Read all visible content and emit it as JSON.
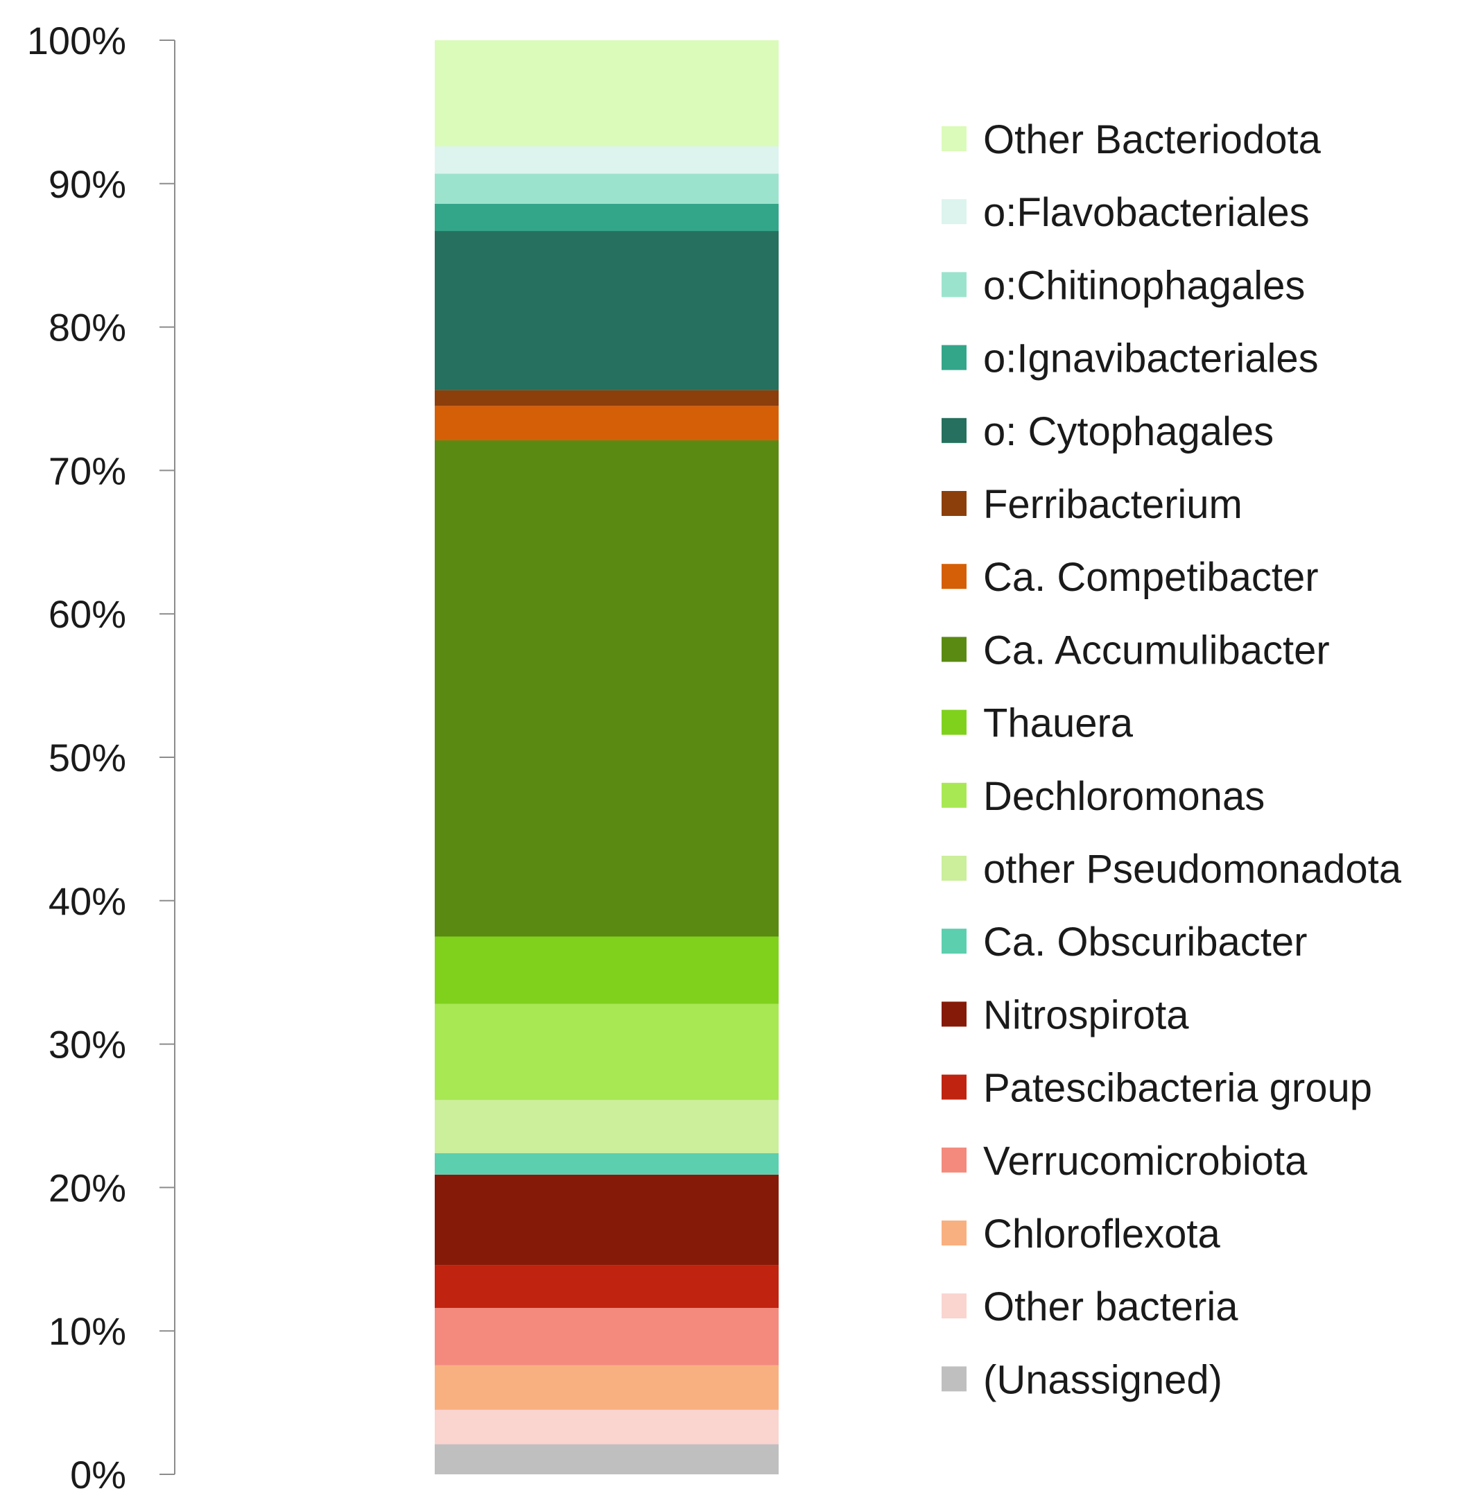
{
  "chart_data": {
    "type": "bar",
    "stacked": true,
    "percent_stacked": true,
    "categories": [
      ""
    ],
    "ylim": [
      0,
      100
    ],
    "y_tick_labels": [
      "0%",
      "10%",
      "20%",
      "30%",
      "40%",
      "50%",
      "60%",
      "70%",
      "80%",
      "90%",
      "100%"
    ],
    "y_ticks": [
      0,
      10,
      20,
      30,
      40,
      50,
      60,
      70,
      80,
      90,
      100
    ],
    "grid": false,
    "legend_position": "right",
    "series": [
      {
        "name": "(Unassigned)",
        "color": "#bfbfbf",
        "values": [
          2.1
        ]
      },
      {
        "name": "Other bacteria",
        "color": "#fad4cf",
        "values": [
          2.4
        ]
      },
      {
        "name": "Chloroflexota",
        "color": "#f9b080",
        "values": [
          3.1
        ]
      },
      {
        "name": "Verrucomicrobiota",
        "color": "#f38a7d",
        "values": [
          4.0
        ]
      },
      {
        "name": "Patescibacteria group",
        "color": "#c0230f",
        "values": [
          3.0
        ]
      },
      {
        "name": "Nitrospirota",
        "color": "#861a08",
        "values": [
          6.3
        ]
      },
      {
        "name": "Ca. Obscuribacter",
        "color": "#5ccfae",
        "values": [
          1.5
        ]
      },
      {
        "name": "other Pseudomonadota",
        "color": "#cbef9a",
        "values": [
          3.7
        ]
      },
      {
        "name": "Dechloromonas",
        "color": "#a8e853",
        "values": [
          6.7
        ]
      },
      {
        "name": "Thauera",
        "color": "#7fd11c",
        "values": [
          4.7
        ]
      },
      {
        "name": "Ca. Accumulibacter",
        "color": "#5a8a12",
        "values": [
          34.6
        ]
      },
      {
        "name": "Ca. Competibacter",
        "color": "#d55f07",
        "values": [
          2.4
        ]
      },
      {
        "name": "Ferribacterium",
        "color": "#8c3f0b",
        "values": [
          1.1
        ]
      },
      {
        "name": "o: Cytophagales",
        "color": "#25705e",
        "values": [
          11.1
        ]
      },
      {
        "name": "o:Ignavibacteriales",
        "color": "#33a68a",
        "values": [
          1.9
        ]
      },
      {
        "name": "o:Chitinophagales",
        "color": "#9ce3cd",
        "values": [
          2.1
        ]
      },
      {
        "name": "o:Flavobacteriales",
        "color": "#dcf4ed",
        "values": [
          1.9
        ]
      },
      {
        "name": "Other Bacteriodota",
        "color": "#dbfbba",
        "values": [
          7.4
        ]
      }
    ]
  }
}
